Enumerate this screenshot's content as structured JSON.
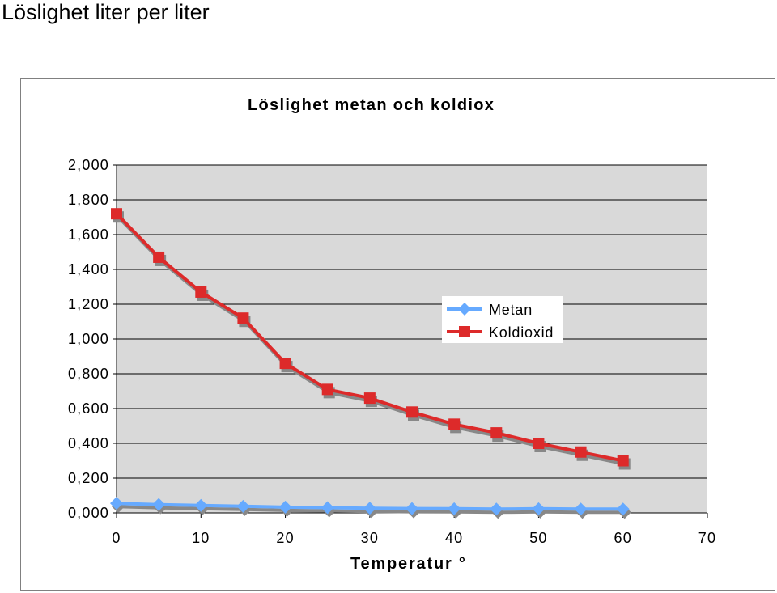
{
  "page": {
    "heading": "Löslighet liter per liter"
  },
  "chart_data": {
    "type": "line",
    "title": "Löslighet metan och koldiox",
    "xlabel": "Temperatur °",
    "ylabel": "",
    "x": [
      0,
      5,
      10,
      15,
      20,
      25,
      30,
      35,
      40,
      45,
      50,
      55,
      60
    ],
    "xlim": [
      0,
      70
    ],
    "xticks": [
      "0",
      "10",
      "20",
      "30",
      "40",
      "50",
      "60",
      "70"
    ],
    "ylim": [
      0,
      2
    ],
    "yticks": [
      "0,000",
      "0,200",
      "0,400",
      "0,600",
      "0,800",
      "1,000",
      "1,200",
      "1,400",
      "1,600",
      "1,800",
      "2,000"
    ],
    "grid": true,
    "legend_position": "right",
    "series": [
      {
        "name": "Metan",
        "color": "#66aaff",
        "marker": "diamond",
        "values": [
          0.055,
          0.048,
          0.043,
          0.038,
          0.033,
          0.03,
          0.027,
          0.025,
          0.024,
          0.022,
          0.024,
          0.022,
          0.022
        ]
      },
      {
        "name": "Koldioxid",
        "color": "#dd2a2a",
        "marker": "square",
        "values": [
          1.72,
          1.47,
          1.27,
          1.12,
          0.86,
          0.71,
          0.66,
          0.58,
          0.51,
          0.46,
          0.4,
          0.35,
          0.3
        ]
      }
    ],
    "plot_background": "#d9d9d9",
    "shadow_color": "#888888"
  }
}
